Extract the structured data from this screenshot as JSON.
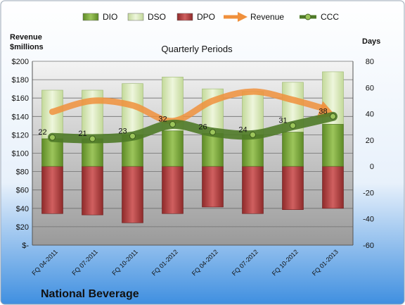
{
  "chart_data": {
    "type": "bar",
    "title": "Quarterly Periods",
    "company": "National Beverage",
    "left_axis_label_line1": "Revenue",
    "left_axis_label_line2": "$millions",
    "right_axis_label": "Days",
    "left_ylim": [
      0,
      200
    ],
    "left_ticks": [
      "$-",
      "$20",
      "$40",
      "$60",
      "$80",
      "$100",
      "$120",
      "$140",
      "$160",
      "$180",
      "$200"
    ],
    "right_ylim": [
      -60,
      80
    ],
    "right_ticks": [
      "-60",
      "-40",
      "-20",
      "0",
      "20",
      "40",
      "60",
      "80"
    ],
    "categories": [
      "FQ 04-2011",
      "FQ 07-2011",
      "FQ 10-2011",
      "FQ 01-2012",
      "FQ 04-2012",
      "FQ 07-2012",
      "FQ 10-2012",
      "FQ 01-2013"
    ],
    "series": [
      {
        "name": "DIO",
        "axis": "days",
        "color": "#77A33C",
        "values": [
          21,
          21,
          24,
          27,
          25,
          24,
          26,
          32
        ]
      },
      {
        "name": "DSO",
        "axis": "days",
        "color": "#D7E7B4",
        "values": [
          37,
          37,
          39,
          41,
          34,
          33,
          38,
          40
        ]
      },
      {
        "name": "DPO",
        "axis": "days",
        "color": "#B03C3C",
        "values": [
          36,
          37,
          43,
          36,
          31,
          36,
          33,
          32
        ]
      },
      {
        "name": "Revenue",
        "axis": "revenue",
        "color": "#F0903C",
        "values": [
          145,
          157,
          152,
          135,
          157,
          167,
          158,
          142
        ]
      },
      {
        "name": "CCC",
        "axis": "days",
        "color": "#4F7A28",
        "values": [
          22,
          21,
          23,
          32,
          26,
          24,
          31,
          38
        ]
      }
    ],
    "ccc_labels": [
      "22",
      "21",
      "23",
      "32",
      "26",
      "24",
      "31",
      "38"
    ],
    "legend_position": "top",
    "gridlines": true
  }
}
